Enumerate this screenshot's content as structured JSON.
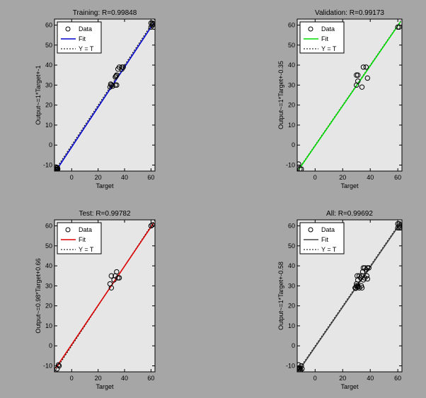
{
  "figure": {
    "background": "#a6a6a6",
    "axes_background": "#e6e6e6"
  },
  "chart_data": [
    {
      "type": "scatter",
      "title": "Training: R=0.99848",
      "xlabel": "Target",
      "ylabel": "Output~=1*Target+-1",
      "xlim": [
        -13,
        63
      ],
      "ylim": [
        -13,
        63
      ],
      "xticks": [
        0,
        20,
        40,
        60
      ],
      "yticks": [
        -10,
        0,
        10,
        20,
        30,
        40,
        50,
        60
      ],
      "grid": false,
      "legend": {
        "position": "top-left",
        "entries": [
          "Data",
          "Fit",
          "Y = T"
        ]
      },
      "fit_color": "#0000cc",
      "fit_line": {
        "slope": 1,
        "intercept": -1
      },
      "points": [
        [
          -11,
          -12
        ],
        [
          -11.5,
          -11.5
        ],
        [
          -12,
          -12.2
        ],
        [
          -10.5,
          -12
        ],
        [
          -11.8,
          -11
        ],
        [
          -11.2,
          -12.4
        ],
        [
          -10.8,
          -11.3
        ],
        [
          -11.5,
          -12.5
        ],
        [
          29,
          29
        ],
        [
          30,
          30
        ],
        [
          31,
          29.5
        ],
        [
          33,
          30
        ],
        [
          34,
          30
        ],
        [
          29.5,
          30.5
        ],
        [
          33,
          34
        ],
        [
          34,
          35
        ],
        [
          33.5,
          34.5
        ],
        [
          35,
          38
        ],
        [
          36,
          39
        ],
        [
          38,
          39
        ],
        [
          38,
          38
        ],
        [
          39,
          39
        ],
        [
          60,
          59
        ],
        [
          61,
          60
        ],
        [
          62,
          59
        ],
        [
          61,
          61
        ],
        [
          60,
          61
        ],
        [
          61.5,
          60.5
        ]
      ]
    },
    {
      "type": "scatter",
      "title": "Validation: R=0.99173",
      "xlabel": "Target",
      "ylabel": "Output~=1*Target+-0.35",
      "xlim": [
        -13,
        63
      ],
      "ylim": [
        -13,
        63
      ],
      "xticks": [
        0,
        20,
        40,
        60
      ],
      "yticks": [
        -10,
        0,
        10,
        20,
        30,
        40,
        50,
        60
      ],
      "grid": false,
      "legend": {
        "position": "top-left",
        "entries": [
          "Data",
          "Fit",
          "Y = T"
        ]
      },
      "fit_color": "#00dd00",
      "fit_line": {
        "slope": 1,
        "intercept": -0.35
      },
      "points": [
        [
          -12,
          -9.5
        ],
        [
          -11,
          -12
        ],
        [
          -10,
          -12
        ],
        [
          30,
          30
        ],
        [
          31,
          32
        ],
        [
          30,
          35
        ],
        [
          31,
          35
        ],
        [
          34,
          29
        ],
        [
          35,
          39
        ],
        [
          37,
          39
        ],
        [
          38,
          33.5
        ],
        [
          60,
          59
        ],
        [
          61,
          59
        ]
      ]
    },
    {
      "type": "scatter",
      "title": "Test: R=0.99782",
      "xlabel": "Target",
      "ylabel": "Output~=0.98*Target+0.66",
      "xlim": [
        -13,
        63
      ],
      "ylim": [
        -13,
        63
      ],
      "xticks": [
        0,
        20,
        40,
        60
      ],
      "yticks": [
        -10,
        0,
        10,
        20,
        30,
        40,
        50,
        60
      ],
      "grid": false,
      "legend": {
        "position": "top-left",
        "entries": [
          "Data",
          "Fit",
          "Y = T"
        ]
      },
      "fit_color": "#dd0000",
      "fit_line": {
        "slope": 0.98,
        "intercept": 0.66
      },
      "points": [
        [
          -11,
          -11.5
        ],
        [
          -10,
          -9.5
        ],
        [
          -9.5,
          -10
        ],
        [
          29,
          31
        ],
        [
          30,
          29
        ],
        [
          30,
          35
        ],
        [
          32,
          33
        ],
        [
          33,
          35
        ],
        [
          34,
          37
        ],
        [
          35,
          34
        ],
        [
          36,
          34
        ],
        [
          60,
          60
        ],
        [
          61,
          60.5
        ]
      ]
    },
    {
      "type": "scatter",
      "title": "All: R=0.99692",
      "xlabel": "Target",
      "ylabel": "Output~=1*Target+-0.58",
      "xlim": [
        -13,
        63
      ],
      "ylim": [
        -13,
        63
      ],
      "xticks": [
        0,
        20,
        40,
        60
      ],
      "yticks": [
        -10,
        0,
        10,
        20,
        30,
        40,
        50,
        60
      ],
      "grid": false,
      "legend": {
        "position": "top-left",
        "entries": [
          "Data",
          "Fit",
          "Y = T"
        ]
      },
      "fit_color": "#444444",
      "fit_line": {
        "slope": 1,
        "intercept": -0.58
      },
      "points": [
        [
          -12,
          -12
        ],
        [
          -11,
          -12.5
        ],
        [
          -10,
          -10
        ],
        [
          -11.5,
          -11
        ],
        [
          -10.5,
          -12
        ],
        [
          -12,
          -9.5
        ],
        [
          -11,
          -11.2
        ],
        [
          -9.5,
          -11.5
        ],
        [
          29,
          29
        ],
        [
          30,
          30
        ],
        [
          29.5,
          28.8
        ],
        [
          31,
          29.5
        ],
        [
          31,
          30
        ],
        [
          30,
          31
        ],
        [
          30.5,
          35
        ],
        [
          31,
          33
        ],
        [
          32,
          35
        ],
        [
          32,
          29
        ],
        [
          33,
          34
        ],
        [
          33.5,
          30
        ],
        [
          34,
          29
        ],
        [
          34,
          35
        ],
        [
          34.5,
          37
        ],
        [
          35,
          33
        ],
        [
          35,
          39
        ],
        [
          36,
          34
        ],
        [
          36,
          39
        ],
        [
          37,
          38
        ],
        [
          37.5,
          35
        ],
        [
          38,
          33.5
        ],
        [
          38,
          39
        ],
        [
          39,
          39
        ],
        [
          60,
          59
        ],
        [
          61,
          59
        ],
        [
          60,
          61
        ],
        [
          61,
          61
        ],
        [
          62,
          59
        ],
        [
          61,
          60
        ]
      ]
    }
  ]
}
